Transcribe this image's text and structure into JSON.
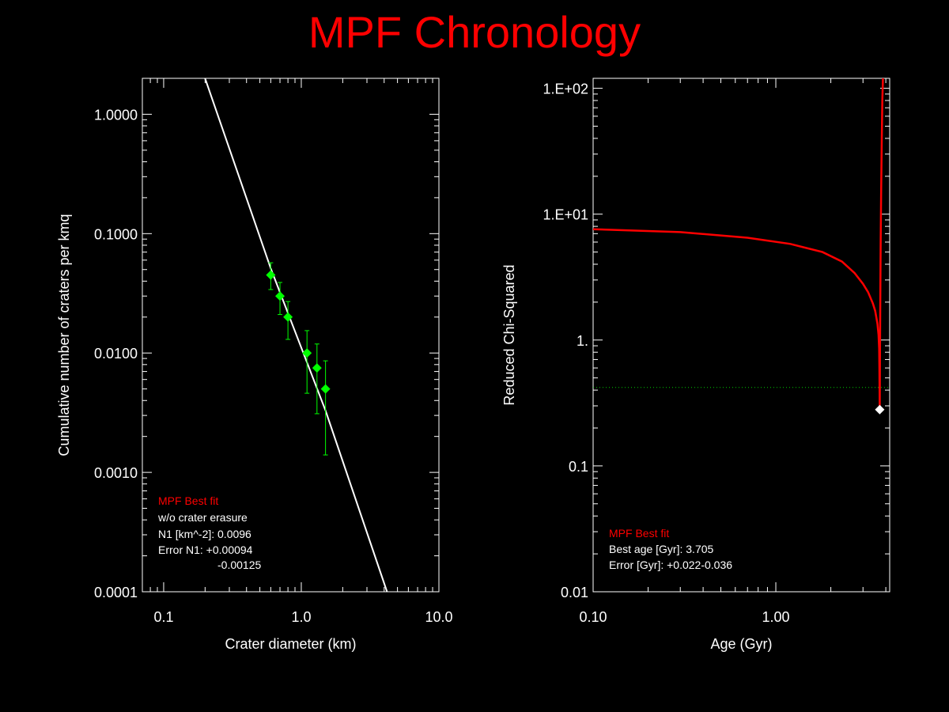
{
  "title": "MPF Chronology",
  "colors": {
    "background": "#000000",
    "axes": "#ffffff",
    "title": "#ff0000",
    "points": "#00ff00",
    "fit_line": "#ffffff",
    "chi_curve": "#ff0000",
    "best_marker": "#ffffff",
    "threshold_line": "#00ff00"
  },
  "chart_data": [
    {
      "type": "scatter",
      "xlabel": "Crater diameter (km)",
      "ylabel": "Cumulative number of craters per kmq",
      "xscale": "log",
      "yscale": "log",
      "xlim": [
        0.07,
        10.0
      ],
      "ylim": [
        0.0001,
        2.0
      ],
      "xticks": [
        0.1,
        1.0,
        10.0
      ],
      "xtick_labels": [
        "0.1",
        "1.0",
        "10.0"
      ],
      "yticks": [
        0.0001,
        0.001,
        0.01,
        0.1,
        1.0
      ],
      "ytick_labels": [
        "0.0001",
        "0.0010",
        "0.0100",
        "0.1000",
        "1.0000"
      ],
      "points": [
        {
          "x": 0.6,
          "y": 0.045,
          "err_low": 0.034,
          "err_high": 0.057
        },
        {
          "x": 0.7,
          "y": 0.03,
          "err_low": 0.021,
          "err_high": 0.039
        },
        {
          "x": 0.8,
          "y": 0.02,
          "err_low": 0.013,
          "err_high": 0.027
        },
        {
          "x": 1.1,
          "y": 0.01,
          "err_low": 0.0046,
          "err_high": 0.0154
        },
        {
          "x": 1.3,
          "y": 0.0075,
          "err_low": 0.0031,
          "err_high": 0.0119
        },
        {
          "x": 1.5,
          "y": 0.005,
          "err_low": 0.0014,
          "err_high": 0.0086
        }
      ],
      "fit_line": [
        {
          "x": 0.2,
          "y": 2.0
        },
        {
          "x": 0.6,
          "y": 0.051
        },
        {
          "x": 1.5,
          "y": 0.0033
        },
        {
          "x": 4.2,
          "y": 0.0001
        }
      ],
      "annotation": {
        "heading": "MPF Best fit",
        "lines": [
          "w/o crater erasure",
          "N1 [km^-2]: 0.0096",
          "Error N1: +0.00094",
          "-0.00125"
        ]
      }
    },
    {
      "type": "line",
      "xlabel": "Age (Gyr)",
      "ylabel": "Reduced Chi-Squared",
      "xscale": "log",
      "yscale": "log",
      "xlim": [
        0.1,
        4.2
      ],
      "ylim": [
        0.01,
        120
      ],
      "xticks": [
        0.1,
        1.0
      ],
      "xtick_labels": [
        "0.10",
        "1.00"
      ],
      "yticks": [
        0.01,
        0.1,
        1,
        10,
        100
      ],
      "ytick_labels": [
        "0.01",
        "0.1",
        "1.",
        "1.E+01",
        "1.E+02"
      ],
      "series": [
        {
          "x": [
            0.1,
            0.3,
            0.7,
            1.2,
            1.8,
            2.3,
            2.7,
            3.0,
            3.2,
            3.4,
            3.5,
            3.6,
            3.65,
            3.68,
            3.69,
            3.7,
            3.705,
            3.715,
            3.73,
            3.75,
            3.77,
            3.8,
            3.83,
            3.86
          ],
          "y": [
            7.6,
            7.2,
            6.5,
            5.8,
            5.0,
            4.2,
            3.4,
            2.8,
            2.4,
            1.95,
            1.7,
            1.35,
            1.1,
            0.85,
            0.6,
            0.35,
            0.28,
            0.7,
            2.0,
            6.0,
            15.0,
            40.0,
            80.0,
            120.0
          ]
        }
      ],
      "best_point": {
        "x": 3.705,
        "y": 0.28
      },
      "threshold": 0.42,
      "annotation": {
        "heading": "MPF Best fit",
        "lines": [
          "Best age [Gyr]: 3.705",
          "Error [Gyr]: +0.022-0.036"
        ]
      }
    }
  ]
}
